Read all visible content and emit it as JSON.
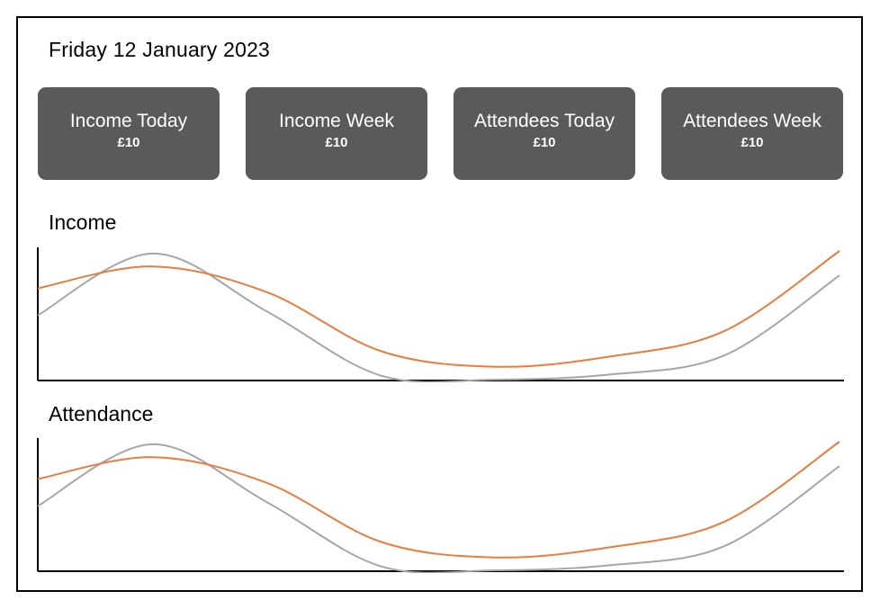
{
  "dashboard": {
    "date": "Friday 12 January 2023"
  },
  "cards": [
    {
      "title": "Income Today",
      "value": "£10"
    },
    {
      "title": "Income Week",
      "value": "£10"
    },
    {
      "title": "Attendees Today",
      "value": "£10"
    },
    {
      "title": "Attendees Week",
      "value": "£10"
    }
  ],
  "sections": {
    "income_title": "Income",
    "attendance_title": "Attendance"
  },
  "colors": {
    "card_bg": "#5a5a5a",
    "series_orange": "#e87d3e",
    "series_grey": "#a6a6a6"
  },
  "chart_data": [
    {
      "type": "line",
      "title": "Income",
      "x": [
        0,
        1,
        2,
        3,
        4,
        5,
        6,
        7
      ],
      "ylim": [
        0,
        10
      ],
      "grid": false,
      "series": [
        {
          "values": [
            7.1,
            8.8,
            6.8,
            2.2,
            1.0,
            1.8,
            3.8,
            10
          ]
        },
        {
          "values": [
            5.0,
            9.8,
            5.3,
            0.3,
            0.0,
            0.4,
            1.9,
            8.1
          ]
        }
      ]
    },
    {
      "type": "line",
      "title": "Attendance",
      "x": [
        0,
        1,
        2,
        3,
        4,
        5,
        6,
        7
      ],
      "ylim": [
        0,
        10
      ],
      "grid": false,
      "series": [
        {
          "values": [
            7.1,
            8.8,
            6.8,
            2.2,
            1.0,
            1.8,
            3.8,
            10
          ]
        },
        {
          "values": [
            5.0,
            9.8,
            5.3,
            0.3,
            0.0,
            0.4,
            1.9,
            8.1
          ]
        }
      ]
    }
  ]
}
